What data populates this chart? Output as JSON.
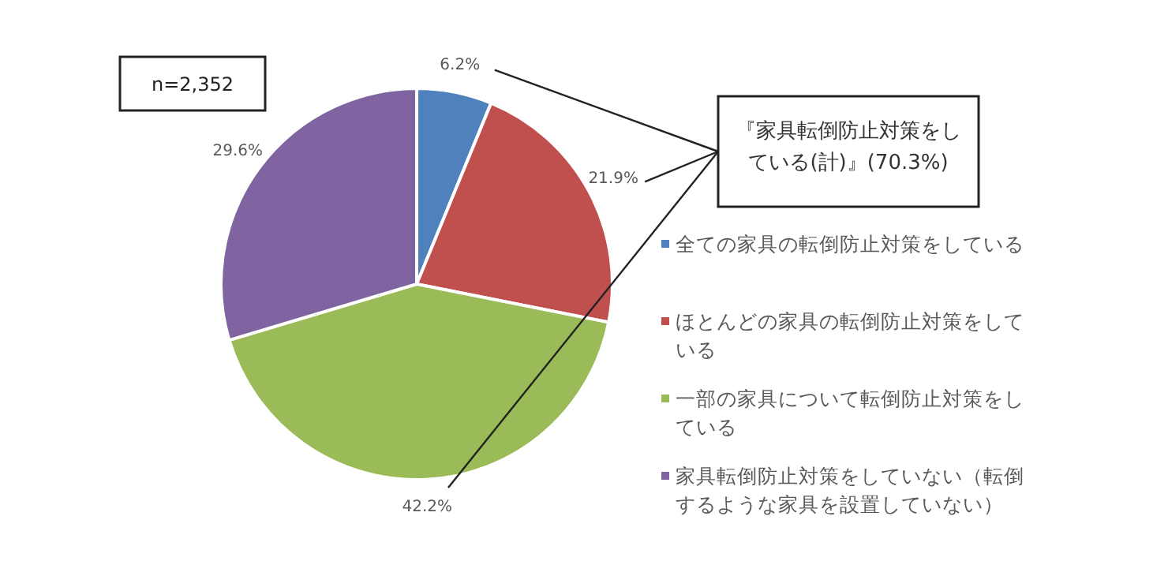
{
  "chart_data": {
    "type": "pie",
    "categories": [
      "全ての家具の転倒防止対策をしている",
      "ほとんどの家具の転倒防止対策をしている",
      "一部の家具について転倒防止対策をしている",
      "家具転倒防止対策をしていない（転倒するような家具を設置していない）"
    ],
    "values": [
      6.2,
      21.9,
      42.2,
      29.6
    ],
    "value_labels": [
      "6.2%",
      "21.9%",
      "42.2%",
      "29.6%"
    ],
    "colors": [
      "#4f81bd",
      "#c0504d",
      "#9bbb59",
      "#8064a2"
    ],
    "legend": "right",
    "annotations": [
      "n=2,352",
      "『家具転倒防止対策をしている(計)』(70.3%)"
    ]
  }
}
